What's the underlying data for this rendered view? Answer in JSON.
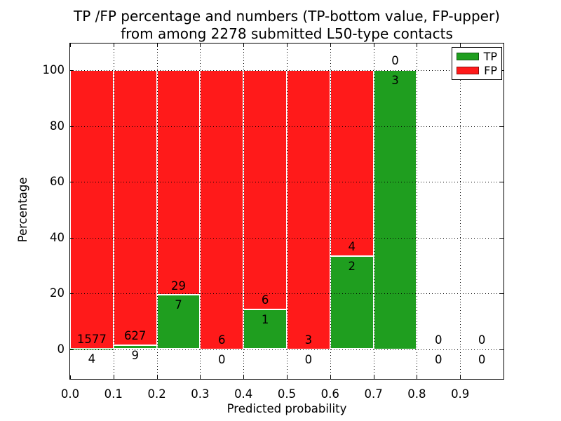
{
  "title": {
    "line1": "TP /FP percentage and numbers (TP-bottom value, FP-upper)",
    "line2": "from among 2278 submitted L50-type contacts"
  },
  "axes": {
    "xlabel": "Predicted probability",
    "ylabel": "Percentage"
  },
  "legend": {
    "items": [
      {
        "label": "TP",
        "color": "#1f9e1f"
      },
      {
        "label": "FP",
        "color": "#ff1a1a"
      }
    ]
  },
  "chart_data": {
    "type": "bar",
    "stacked": true,
    "title": "TP /FP percentage and numbers (TP-bottom value, FP-upper)\nfrom among 2278 submitted L50-type contacts",
    "xlabel": "Predicted probability",
    "ylabel": "Percentage",
    "xlim": [
      0.0,
      1.0
    ],
    "ylim": [
      -10.7,
      109.6
    ],
    "total_submitted": 2278,
    "grid": "dotted",
    "legend_position": "upper right",
    "legend_entries": [
      "TP",
      "FP"
    ],
    "colors": {
      "tp": "#1f9e1f",
      "fp": "#ff1a1a",
      "bar_edge": "#ffffff"
    },
    "y_grid": [
      0,
      20,
      40,
      60,
      80,
      100
    ],
    "x_grid": [
      0.1,
      0.2,
      0.3,
      0.4,
      0.5,
      0.6,
      0.7,
      0.8,
      0.9
    ],
    "x_ticks": [
      {
        "value": 0.0,
        "label": "0.0"
      },
      {
        "value": 0.1,
        "label": "0.1"
      },
      {
        "value": 0.2,
        "label": "0.2"
      },
      {
        "value": 0.3,
        "label": "0.3"
      },
      {
        "value": 0.4,
        "label": "0.4"
      },
      {
        "value": 0.5,
        "label": "0.5"
      },
      {
        "value": 0.6,
        "label": "0.6"
      },
      {
        "value": 0.7,
        "label": "0.7"
      },
      {
        "value": 0.8,
        "label": "0.8"
      },
      {
        "value": 0.9,
        "label": "0.9"
      }
    ],
    "y_ticks": [
      {
        "value": 0,
        "label": "0"
      },
      {
        "value": 20,
        "label": "20"
      },
      {
        "value": 40,
        "label": "40"
      },
      {
        "value": 60,
        "label": "60"
      },
      {
        "value": 80,
        "label": "80"
      },
      {
        "value": 100,
        "label": "100"
      }
    ],
    "bins": [
      {
        "range": [
          0.0,
          0.1
        ],
        "tp_count": 4,
        "fp_count": 1577,
        "tp_pct": 0.25,
        "fp_pct": 99.75
      },
      {
        "range": [
          0.1,
          0.2
        ],
        "tp_count": 9,
        "fp_count": 627,
        "tp_pct": 1.42,
        "fp_pct": 98.58
      },
      {
        "range": [
          0.2,
          0.3
        ],
        "tp_count": 7,
        "fp_count": 29,
        "tp_pct": 19.44,
        "fp_pct": 80.56
      },
      {
        "range": [
          0.3,
          0.4
        ],
        "tp_count": 0,
        "fp_count": 6,
        "tp_pct": 0,
        "fp_pct": 100
      },
      {
        "range": [
          0.4,
          0.5
        ],
        "tp_count": 1,
        "fp_count": 6,
        "tp_pct": 14.29,
        "fp_pct": 85.71
      },
      {
        "range": [
          0.5,
          0.6
        ],
        "tp_count": 0,
        "fp_count": 3,
        "tp_pct": 0,
        "fp_pct": 100
      },
      {
        "range": [
          0.6,
          0.7
        ],
        "tp_count": 2,
        "fp_count": 4,
        "tp_pct": 33.33,
        "fp_pct": 66.67
      },
      {
        "range": [
          0.7,
          0.8
        ],
        "tp_count": 3,
        "fp_count": 0,
        "tp_pct": 100,
        "fp_pct": 0
      },
      {
        "range": [
          0.8,
          0.9
        ],
        "tp_count": 0,
        "fp_count": 0,
        "tp_pct": 0,
        "fp_pct": 0
      },
      {
        "range": [
          0.9,
          1.0
        ],
        "tp_count": 0,
        "fp_count": 0,
        "tp_pct": 0,
        "fp_pct": 0
      }
    ]
  }
}
